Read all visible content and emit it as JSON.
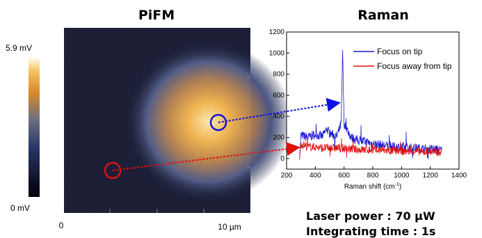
{
  "pifm": {
    "title": "PiFM",
    "colorbar_max_label": "5.9 mV",
    "colorbar_min_label": "0 mV",
    "x_start_label": "0",
    "x_end_label": "10 µm",
    "colors": {
      "dark": "#0a0a23",
      "mid": "#3a4a78",
      "warm": "#d08a30",
      "bright": "#fff4c8"
    },
    "markers": [
      {
        "name": "tip-circle",
        "color": "#1010e0"
      },
      {
        "name": "away-circle",
        "color": "#e01010"
      }
    ]
  },
  "raman": {
    "title": "Raman",
    "xlabel_main": "Raman shift (cm",
    "xlabel_sup": "-1",
    "xlabel_end": ")"
  },
  "chart_data": {
    "type": "line",
    "xlim": [
      200,
      1400
    ],
    "ylim": [
      -100,
      1200
    ],
    "x_ticks": [
      "200",
      "400",
      "600",
      "800",
      "1000",
      "1200",
      "1400"
    ],
    "y_ticks": [
      "0",
      "200",
      "400",
      "600",
      "800",
      "1000",
      "1200"
    ],
    "legend_position": "top-right",
    "series": [
      {
        "name": "Focus on tip",
        "color": "#1a1acc",
        "x": [
          290,
          300,
          350,
          400,
          450,
          480,
          500,
          550,
          580,
          590,
          600,
          650,
          700,
          750,
          800,
          850,
          900,
          950,
          1000,
          1050,
          1100,
          1150,
          1200,
          1280
        ],
        "y": [
          0,
          220,
          200,
          230,
          210,
          280,
          240,
          210,
          330,
          1040,
          330,
          200,
          170,
          160,
          140,
          130,
          120,
          110,
          110,
          100,
          100,
          90,
          90,
          80
        ]
      },
      {
        "name": "Focus away from tip",
        "color": "#e01010",
        "x": [
          290,
          300,
          350,
          400,
          450,
          500,
          550,
          600,
          650,
          700,
          750,
          800,
          850,
          900,
          950,
          1000,
          1050,
          1100,
          1150,
          1200,
          1280
        ],
        "y": [
          0,
          140,
          110,
          110,
          100,
          100,
          100,
          95,
          90,
          85,
          85,
          80,
          80,
          75,
          75,
          70,
          70,
          70,
          65,
          65,
          60
        ]
      }
    ]
  },
  "notes": {
    "laser_power": "Laser power : 70 μW",
    "integrating_time": "Integrating time : 1s"
  }
}
